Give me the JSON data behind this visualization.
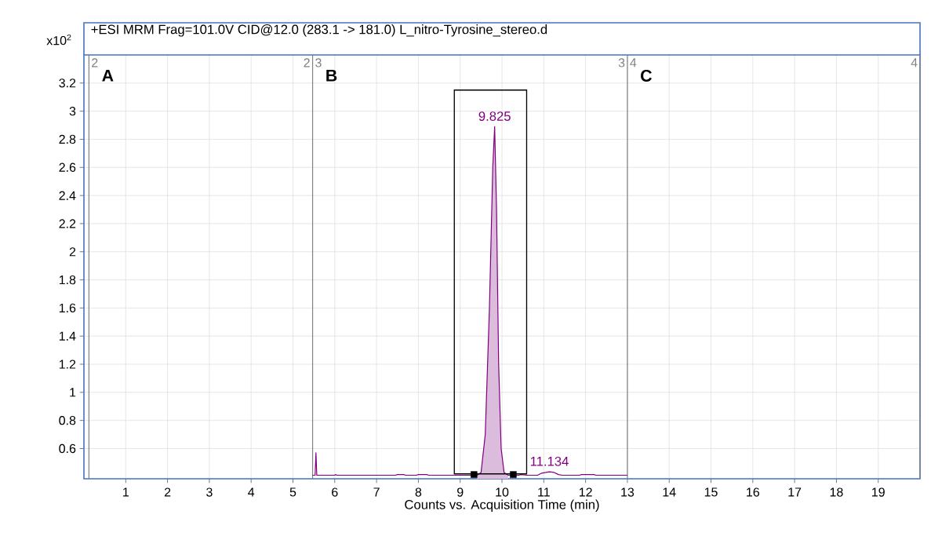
{
  "chart_data": {
    "type": "line",
    "title": "+ESI MRM Frag=101.0V CID@12.0 (283.1 -> 181.0) L_nitro-Tyrosine_stereo.d",
    "xlabel": "Counts vs. Acquisition Time (min)",
    "ylabel": "x10$^{2}$",
    "xlim": [
      0,
      20
    ],
    "ylim": [
      0.385,
      3.4
    ],
    "xticks": [
      1,
      2,
      3,
      4,
      5,
      6,
      7,
      8,
      9,
      10,
      11,
      12,
      13,
      14,
      15,
      16,
      17,
      18,
      19
    ],
    "yticks": [
      0.6,
      0.8,
      1,
      1.2,
      1.4,
      1.6,
      1.8,
      2,
      2.2,
      2.4,
      2.6,
      2.8,
      3,
      3.2
    ],
    "grid": true,
    "series": [
      {
        "type": "area",
        "color": "#dcbcdc",
        "x": [
          9.4,
          9.5,
          9.6,
          9.7,
          9.78,
          9.825,
          9.87,
          9.92,
          9.98,
          10.05,
          10.15
        ],
        "values": [
          0.41,
          0.43,
          0.7,
          1.6,
          2.6,
          2.89,
          2.3,
          1.2,
          0.6,
          0.43,
          0.41
        ]
      },
      {
        "color": "#800080",
        "x": [
          5.47,
          5.53,
          5.55,
          5.57,
          6.0,
          6.02,
          6.05,
          7.45,
          7.5,
          7.65,
          7.7,
          7.95,
          8.0,
          8.2,
          8.25,
          9.4,
          9.5,
          9.6,
          9.7,
          9.78,
          9.825,
          9.87,
          9.92,
          9.98,
          10.05,
          10.15,
          10.4,
          10.45,
          10.6,
          10.85,
          10.95,
          11.05,
          11.134,
          11.25,
          11.35,
          11.45,
          11.85,
          11.9,
          12.2,
          12.25,
          13.0
        ],
        "values": [
          0.41,
          0.41,
          0.57,
          0.41,
          0.41,
          0.415,
          0.41,
          0.41,
          0.415,
          0.415,
          0.41,
          0.41,
          0.415,
          0.415,
          0.41,
          0.41,
          0.43,
          0.7,
          1.6,
          2.6,
          2.89,
          2.3,
          1.2,
          0.6,
          0.43,
          0.41,
          0.41,
          0.415,
          0.41,
          0.41,
          0.425,
          0.43,
          0.435,
          0.43,
          0.415,
          0.41,
          0.41,
          0.415,
          0.415,
          0.41,
          0.41
        ]
      },
      {
        "type": "scatter",
        "color": "#000000",
        "marker": "square",
        "x": [
          9.33,
          10.27
        ],
        "values": [
          0.415,
          0.415
        ]
      }
    ],
    "ref_lines": [
      {
        "axis": "x",
        "value": 0.12,
        "color": "#808080"
      },
      {
        "axis": "x",
        "value": 5.47,
        "color": "#808080"
      },
      {
        "axis": "x",
        "value": 13,
        "color": "#808080"
      },
      {
        "axis": "x",
        "value": 20,
        "color": "#808080"
      }
    ],
    "annotations": [
      "**A**",
      "**B**",
      "**C**",
      "2",
      "3",
      "4",
      "2",
      "3",
      "4",
      {
        "text": "9.825",
        "x": 9.825,
        "y": 2.89
      },
      {
        "text": "11.134",
        "x": 11.134,
        "y": 0.435
      }
    ]
  }
}
